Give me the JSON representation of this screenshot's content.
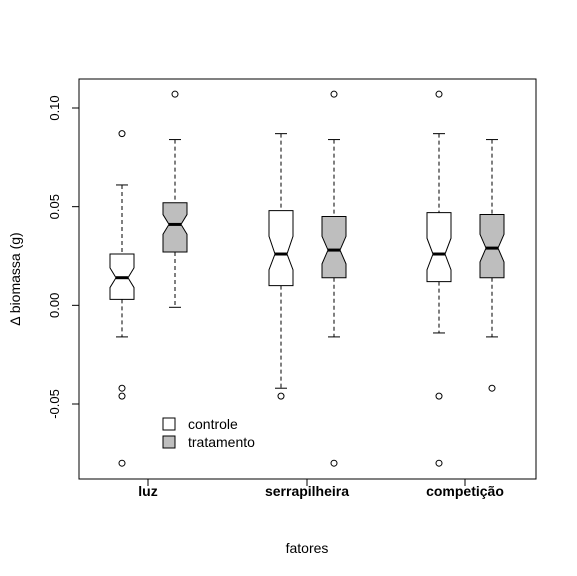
{
  "chart_data": {
    "type": "boxplot",
    "notched": true,
    "xlabel": "fatores",
    "ylabel": "Δ biomassa (g)",
    "ylim": [
      -0.085,
      0.115
    ],
    "y_ticks": [
      0.1,
      0.05,
      0.0,
      -0.05
    ],
    "y_tick_labels": [
      "0.10",
      "0.05",
      "0.00",
      "-0.05"
    ],
    "categories": [
      "luz",
      "serrapilheira",
      "competição"
    ],
    "legend": {
      "position": "bottom-left",
      "entries": [
        {
          "label": "controle",
          "color": "#ffffff"
        },
        {
          "label": "tratamento",
          "color": "#bebebe"
        }
      ]
    },
    "series": [
      {
        "name": "controle",
        "color": "#ffffff",
        "boxes": [
          {
            "category": "luz",
            "whisker_low": -0.016,
            "q1": 0.003,
            "median": 0.014,
            "q3": 0.026,
            "whisker_high": 0.061,
            "notch_low": 0.009,
            "notch_high": 0.019,
            "outliers": [
              0.087,
              -0.042,
              -0.046,
              -0.08
            ]
          },
          {
            "category": "serrapilheira",
            "whisker_low": -0.042,
            "q1": 0.01,
            "median": 0.026,
            "q3": 0.048,
            "whisker_high": 0.087,
            "notch_low": 0.018,
            "notch_high": 0.035,
            "outliers": [
              -0.046
            ]
          },
          {
            "category": "competição",
            "whisker_low": -0.014,
            "q1": 0.012,
            "median": 0.026,
            "q3": 0.047,
            "whisker_high": 0.087,
            "notch_low": 0.018,
            "notch_high": 0.034,
            "outliers": [
              0.107,
              -0.046,
              -0.08
            ]
          }
        ]
      },
      {
        "name": "tratamento",
        "color": "#bebebe",
        "boxes": [
          {
            "category": "luz",
            "whisker_low": -0.001,
            "q1": 0.027,
            "median": 0.041,
            "q3": 0.052,
            "whisker_high": 0.084,
            "notch_low": 0.036,
            "notch_high": 0.046,
            "outliers": [
              0.107
            ]
          },
          {
            "category": "serrapilheira",
            "whisker_low": -0.016,
            "q1": 0.014,
            "median": 0.028,
            "q3": 0.045,
            "whisker_high": 0.084,
            "notch_low": 0.021,
            "notch_high": 0.035,
            "outliers": [
              0.107,
              -0.08
            ]
          },
          {
            "category": "competição",
            "whisker_low": -0.016,
            "q1": 0.014,
            "median": 0.029,
            "q3": 0.046,
            "whisker_high": 0.084,
            "notch_low": 0.022,
            "notch_high": 0.036,
            "outliers": [
              -0.042
            ]
          }
        ]
      }
    ]
  }
}
